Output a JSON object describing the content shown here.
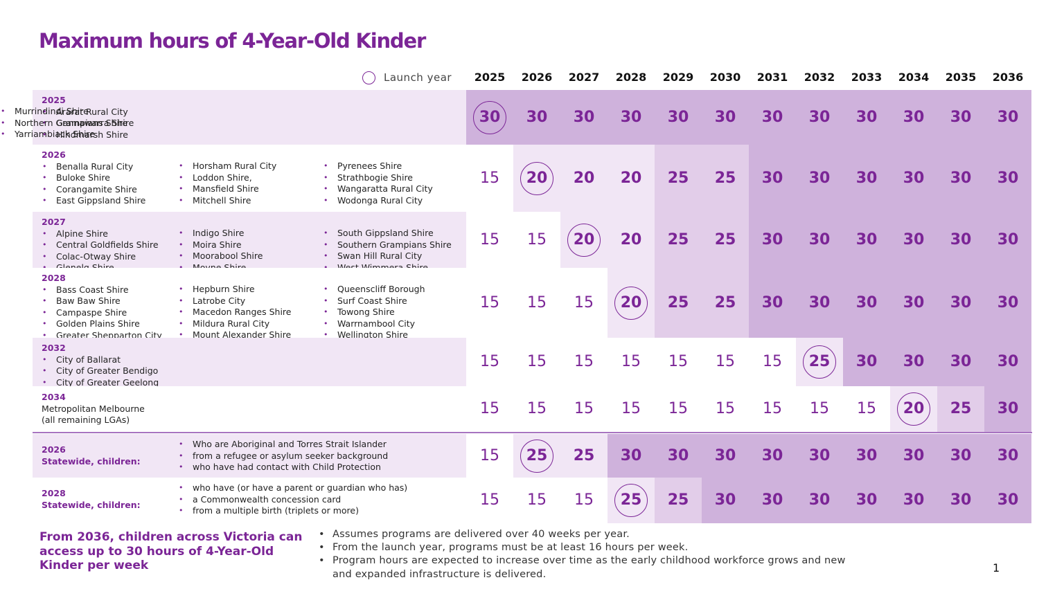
{
  "title": "Maximum hours of 4-Year-Old Kinder",
  "legend_label": "Launch year",
  "colors": {
    "purple": "#7b2596",
    "light": "#f1e6f5",
    "mid": "#e2cde9",
    "dark": "#cfb2dc"
  },
  "years": [
    "2025",
    "2026",
    "2027",
    "2028",
    "2029",
    "2030",
    "2031",
    "2032",
    "2033",
    "2034",
    "2035",
    "2036"
  ],
  "rows": [
    {
      "cols": [
        {
          "year": "2025",
          "items": [
            "Ararat Rural City",
            "Gannawarra Shire",
            "Hindmarsh Shire"
          ]
        },
        {
          "items": [
            "Murrindindi Shire",
            "Northern Grampians Shire",
            "Yarriambiack Shire"
          ]
        }
      ],
      "values": [
        "30",
        "30",
        "30",
        "30",
        "30",
        "30",
        "30",
        "30",
        "30",
        "30",
        "30",
        "30"
      ],
      "launch_index": 0
    },
    {
      "cols": [
        {
          "year": "2026",
          "items": [
            "Benalla Rural City",
            "Buloke Shire",
            "Corangamite Shire",
            "East Gippsland Shire"
          ]
        },
        {
          "items": [
            "Horsham Rural City",
            "Loddon Shire,",
            "Mansfield Shire",
            "Mitchell Shire"
          ]
        },
        {
          "items": [
            "Pyrenees Shire",
            "Strathbogie Shire",
            "Wangaratta Rural City",
            "Wodonga Rural City"
          ]
        }
      ],
      "values": [
        "15",
        "20",
        "20",
        "20",
        "25",
        "25",
        "30",
        "30",
        "30",
        "30",
        "30",
        "30"
      ],
      "launch_index": 1
    },
    {
      "cols": [
        {
          "year": "2027",
          "items": [
            "Alpine Shire",
            "Central Goldfields Shire",
            "Colac-Otway Shire",
            "Glenelg Shire"
          ]
        },
        {
          "items": [
            "Indigo Shire",
            "Moira Shire",
            "Moorabool Shire",
            "Moyne Shire"
          ]
        },
        {
          "items": [
            "South Gippsland Shire",
            "Southern Grampians Shire",
            "Swan Hill Rural City",
            "West Wimmera Shire"
          ]
        }
      ],
      "values": [
        "15",
        "15",
        "20",
        "20",
        "25",
        "25",
        "30",
        "30",
        "30",
        "30",
        "30",
        "30"
      ],
      "launch_index": 2
    },
    {
      "cols": [
        {
          "year": "2028",
          "items": [
            "Bass Coast Shire",
            "Baw Baw Shire",
            "Campaspe Shire",
            "Golden Plains Shire",
            "Greater Shepparton City"
          ]
        },
        {
          "items": [
            "Hepburn Shire",
            "Latrobe City",
            "Macedon Ranges Shire",
            "Mildura Rural City",
            "Mount Alexander Shire"
          ]
        },
        {
          "items": [
            "Queenscliff Borough",
            "Surf Coast Shire",
            "Towong Shire",
            "Warrnambool City",
            "Wellington Shire"
          ]
        }
      ],
      "values": [
        "15",
        "15",
        "15",
        "20",
        "25",
        "25",
        "30",
        "30",
        "30",
        "30",
        "30",
        "30"
      ],
      "launch_index": 3
    },
    {
      "cols": [
        {
          "year": "2032",
          "items": [
            "City of Ballarat",
            "City of Greater Bendigo",
            "City of Greater Geelong"
          ]
        }
      ],
      "values": [
        "15",
        "15",
        "15",
        "15",
        "15",
        "15",
        "15",
        "25",
        "30",
        "30",
        "30",
        "30"
      ],
      "launch_index": 7
    },
    {
      "cols": [
        {
          "year": "2034",
          "plain": [
            "Metropolitan Melbourne",
            "(all remaining LGAs)"
          ]
        }
      ],
      "values": [
        "15",
        "15",
        "15",
        "15",
        "15",
        "15",
        "15",
        "15",
        "15",
        "20",
        "25",
        "30"
      ],
      "launch_index": 9
    },
    {
      "cols": [
        {
          "year": "2026",
          "year2": "Statewide, children:"
        },
        {
          "items": [
            "Who are Aboriginal  and Torres Strait Islander",
            "from a refugee or asylum seeker background",
            "who have had contact with Child Protection"
          ]
        }
      ],
      "values": [
        "15",
        "25",
        "25",
        "30",
        "30",
        "30",
        "30",
        "30",
        "30",
        "30",
        "30",
        "30"
      ],
      "launch_index": 1
    },
    {
      "cols": [
        {
          "year": "2028",
          "year2": "Statewide, children:"
        },
        {
          "items": [
            "who have (or have a parent or guardian who has)",
            "a Commonwealth concession card",
            "from a multiple birth (triplets or more)"
          ]
        }
      ],
      "values": [
        "15",
        "15",
        "15",
        "25",
        "25",
        "30",
        "30",
        "30",
        "30",
        "30",
        "30",
        "30"
      ],
      "launch_index": 3
    }
  ],
  "footer": {
    "main": "From 2036, children across Victoria can access up to 30 hours of 4-Year-Old Kinder per week",
    "notes": [
      "Assumes programs are delivered over 40 weeks per year.",
      "From the launch year, programs must be at least 16 hours per week.",
      "Program hours are expected to increase over time as the early childhood workforce grows and new and expanded infrastructure is delivered."
    ]
  },
  "page_number": "1"
}
